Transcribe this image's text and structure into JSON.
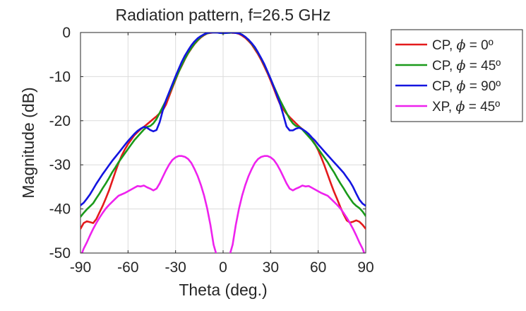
{
  "chart_data": {
    "type": "line",
    "title": "Radiation pattern, f=26.5 GHz",
    "xlabel": "Theta (deg.)",
    "ylabel": "Magnitude (dB)",
    "xlim": [
      -90,
      90
    ],
    "ylim": [
      -50,
      0
    ],
    "xticks": [
      -90,
      -60,
      -30,
      0,
      30,
      60,
      90
    ],
    "yticks": [
      0,
      -10,
      -20,
      -30,
      -40,
      -50
    ],
    "xtick_labels": [
      "-90",
      "-60",
      "-30",
      "0",
      "30",
      "60",
      "90"
    ],
    "ytick_labels": [
      "0",
      "-10",
      "-20",
      "-30",
      "-40",
      "-50"
    ],
    "grid": true,
    "legend_position": "outside-right-top",
    "series": [
      {
        "name": "CP, ϕ = 0º",
        "legend_prefix": "CP, ",
        "legend_symbol": "ϕ",
        "legend_suffix": " = 0º",
        "color": "#e41a1c",
        "x": [
          -90,
          -88,
          -86,
          -84,
          -82,
          -80,
          -78,
          -76,
          -74,
          -72,
          -70,
          -68,
          -66,
          -64,
          -62,
          -60,
          -58,
          -56,
          -54,
          -52,
          -50,
          -48,
          -46,
          -44,
          -42,
          -40,
          -38,
          -36,
          -34,
          -32,
          -30,
          -28,
          -26,
          -24,
          -22,
          -20,
          -18,
          -16,
          -14,
          -12,
          -10,
          -8,
          -6,
          -4,
          -2,
          0,
          2,
          4,
          6,
          8,
          10,
          12,
          14,
          16,
          18,
          20,
          22,
          24,
          26,
          28,
          30,
          32,
          34,
          36,
          38,
          40,
          42,
          44,
          46,
          48,
          50,
          52,
          54,
          56,
          58,
          60,
          62,
          64,
          66,
          68,
          70,
          72,
          74,
          76,
          78,
          80,
          82,
          84,
          86,
          88,
          90
        ],
        "y": [
          -44.5,
          -43.2,
          -42.8,
          -43.0,
          -43.2,
          -42.3,
          -40.8,
          -39.3,
          -37.6,
          -35.8,
          -33.7,
          -31.6,
          -29.6,
          -27.9,
          -26.5,
          -25.3,
          -24.3,
          -23.3,
          -22.6,
          -21.9,
          -21.4,
          -20.8,
          -20.2,
          -19.6,
          -19.0,
          -18.3,
          -17.6,
          -16.3,
          -14.4,
          -12.5,
          -10.7,
          -8.9,
          -7.5,
          -6.0,
          -4.7,
          -3.6,
          -2.6,
          -1.8,
          -1.1,
          -0.6,
          -0.2,
          -0.1,
          0.0,
          0.0,
          0.0,
          -0.1,
          -0.1,
          0.0,
          -0.1,
          -0.1,
          -0.3,
          -0.7,
          -1.2,
          -1.9,
          -2.7,
          -3.8,
          -4.9,
          -6.2,
          -7.7,
          -9.2,
          -10.9,
          -12.7,
          -14.6,
          -16.3,
          -17.4,
          -18.4,
          -19.2,
          -19.9,
          -20.6,
          -21.3,
          -21.9,
          -22.6,
          -23.3,
          -24.2,
          -25.3,
          -26.7,
          -28.4,
          -30.2,
          -32.2,
          -34.2,
          -36.1,
          -37.8,
          -39.6,
          -41.2,
          -42.6,
          -43.1,
          -42.9,
          -42.6,
          -42.9,
          -43.6,
          -44.5
        ]
      },
      {
        "name": "CP, ϕ = 45º",
        "legend_prefix": "CP, ",
        "legend_symbol": "ϕ",
        "legend_suffix": " = 45º",
        "color": "#1a9a1a",
        "x": [
          -90,
          -88,
          -86,
          -84,
          -82,
          -80,
          -78,
          -76,
          -74,
          -72,
          -70,
          -68,
          -66,
          -64,
          -62,
          -60,
          -58,
          -56,
          -54,
          -52,
          -50,
          -48,
          -46,
          -44,
          -42,
          -40,
          -38,
          -36,
          -34,
          -32,
          -30,
          -28,
          -26,
          -24,
          -22,
          -20,
          -18,
          -16,
          -14,
          -12,
          -10,
          -8,
          -6,
          -4,
          -2,
          0,
          2,
          4,
          6,
          8,
          10,
          12,
          14,
          16,
          18,
          20,
          22,
          24,
          26,
          28,
          30,
          32,
          34,
          36,
          38,
          40,
          42,
          44,
          46,
          48,
          50,
          52,
          54,
          56,
          58,
          60,
          62,
          64,
          66,
          68,
          70,
          72,
          74,
          76,
          78,
          80,
          82,
          84,
          86,
          88,
          90
        ],
        "y": [
          -41.8,
          -40.9,
          -40.1,
          -39.4,
          -38.7,
          -37.6,
          -36.5,
          -35.3,
          -34.2,
          -33.0,
          -31.7,
          -30.6,
          -29.4,
          -28.4,
          -27.4,
          -26.4,
          -25.4,
          -24.4,
          -23.6,
          -22.8,
          -22.0,
          -21.4,
          -21.2,
          -20.6,
          -19.6,
          -18.2,
          -16.8,
          -15.4,
          -13.8,
          -12.2,
          -10.5,
          -8.9,
          -7.3,
          -5.9,
          -4.6,
          -3.5,
          -2.5,
          -1.7,
          -1.0,
          -0.5,
          -0.2,
          0.0,
          0.0,
          0.0,
          -0.1,
          -0.2,
          -0.1,
          -0.1,
          0.0,
          -0.1,
          -0.2,
          -0.5,
          -1.0,
          -1.7,
          -2.5,
          -3.5,
          -4.6,
          -5.9,
          -7.3,
          -8.9,
          -10.5,
          -12.2,
          -13.8,
          -15.4,
          -16.8,
          -18.2,
          -19.6,
          -20.6,
          -21.2,
          -21.4,
          -22.0,
          -22.8,
          -23.6,
          -24.4,
          -25.4,
          -26.4,
          -27.4,
          -28.4,
          -29.4,
          -30.6,
          -31.7,
          -33.0,
          -34.2,
          -35.3,
          -36.5,
          -37.6,
          -38.6,
          -39.3,
          -39.8,
          -40.6,
          -41.6
        ]
      },
      {
        "name": "CP, ϕ = 90º",
        "legend_prefix": "CP, ",
        "legend_symbol": "ϕ",
        "legend_suffix": " = 90º",
        "color": "#1414e0",
        "x": [
          -90,
          -88,
          -86,
          -84,
          -82,
          -80,
          -78,
          -76,
          -74,
          -72,
          -70,
          -68,
          -66,
          -64,
          -62,
          -60,
          -58,
          -56,
          -54,
          -52,
          -50,
          -48,
          -46,
          -44,
          -42,
          -40,
          -38,
          -36,
          -34,
          -32,
          -30,
          -28,
          -26,
          -24,
          -22,
          -20,
          -18,
          -16,
          -14,
          -12,
          -10,
          -8,
          -6,
          -4,
          -2,
          0,
          2,
          4,
          6,
          8,
          10,
          12,
          14,
          16,
          18,
          20,
          22,
          24,
          26,
          28,
          30,
          32,
          34,
          36,
          38,
          40,
          42,
          44,
          46,
          48,
          50,
          52,
          54,
          56,
          58,
          60,
          62,
          64,
          66,
          68,
          70,
          72,
          74,
          76,
          78,
          80,
          82,
          84,
          86,
          88,
          90
        ],
        "y": [
          -39.2,
          -38.6,
          -37.7,
          -36.7,
          -35.5,
          -34.3,
          -33.2,
          -32.1,
          -31.1,
          -30.1,
          -29.1,
          -28.2,
          -27.3,
          -26.4,
          -25.5,
          -24.6,
          -23.8,
          -23.0,
          -22.3,
          -21.8,
          -21.4,
          -21.6,
          -22.1,
          -22.4,
          -22.1,
          -20.3,
          -17.6,
          -15.3,
          -13.5,
          -11.7,
          -9.9,
          -8.2,
          -6.6,
          -5.2,
          -4.0,
          -2.9,
          -2.0,
          -1.3,
          -0.8,
          -0.4,
          -0.1,
          0.0,
          0.0,
          0.0,
          -0.1,
          -0.1,
          -0.1,
          0.0,
          0.0,
          -0.1,
          -0.2,
          -0.5,
          -1.0,
          -1.6,
          -2.4,
          -3.3,
          -4.5,
          -5.8,
          -7.2,
          -8.8,
          -10.5,
          -12.3,
          -14.2,
          -16.2,
          -18.7,
          -21.3,
          -22.2,
          -22.2,
          -21.8,
          -21.6,
          -21.9,
          -22.4,
          -23.0,
          -23.8,
          -24.5,
          -25.4,
          -26.2,
          -27.0,
          -27.8,
          -28.6,
          -29.4,
          -30.2,
          -31.0,
          -31.8,
          -32.8,
          -33.8,
          -35.0,
          -36.5,
          -37.9,
          -38.8,
          -39.3
        ]
      },
      {
        "name": "XP, ϕ = 45º",
        "legend_prefix": "XP, ",
        "legend_symbol": "ϕ",
        "legend_suffix": " = 45º",
        "color": "#ee22ee",
        "x": [
          -89,
          -88,
          -86,
          -84,
          -82,
          -80,
          -78,
          -76,
          -74,
          -72,
          -70,
          -68,
          -66,
          -64,
          -62,
          -60,
          -58,
          -56,
          -54,
          -52,
          -50,
          -48,
          -46,
          -44,
          -42,
          -40,
          -38,
          -36,
          -34,
          -32,
          -30,
          -28,
          -26,
          -24,
          -22,
          -20,
          -18,
          -16,
          -14,
          -12,
          -10,
          -8,
          -6,
          -4.5,
          null,
          4.5,
          6,
          8,
          10,
          12,
          14,
          16,
          18,
          20,
          22,
          24,
          26,
          28,
          30,
          32,
          34,
          36,
          38,
          40,
          42,
          44,
          46,
          48,
          50,
          52,
          54,
          56,
          58,
          60,
          62,
          64,
          66,
          68,
          70,
          72,
          74,
          76,
          78,
          80,
          82,
          84,
          86,
          88,
          89
        ],
        "y": [
          -50,
          -49.0,
          -47.6,
          -46.0,
          -44.5,
          -43.2,
          -42.0,
          -40.9,
          -39.9,
          -39.1,
          -38.4,
          -37.7,
          -37.0,
          -36.7,
          -36.4,
          -36.0,
          -35.6,
          -35.2,
          -34.8,
          -34.9,
          -34.7,
          -35.1,
          -35.4,
          -35.8,
          -35.4,
          -34.2,
          -32.7,
          -31.2,
          -29.9,
          -28.9,
          -28.3,
          -28.0,
          -28.0,
          -28.2,
          -28.7,
          -29.6,
          -31.0,
          -32.6,
          -34.6,
          -37.0,
          -40.0,
          -43.6,
          -48.1,
          -50,
          null,
          -50,
          -48.1,
          -43.6,
          -40.0,
          -37.0,
          -34.6,
          -32.6,
          -31.0,
          -29.6,
          -28.7,
          -28.2,
          -28.0,
          -28.0,
          -28.3,
          -28.9,
          -29.9,
          -31.2,
          -32.7,
          -34.2,
          -35.4,
          -35.8,
          -35.4,
          -35.1,
          -34.7,
          -34.9,
          -34.8,
          -35.2,
          -35.6,
          -36.0,
          -36.4,
          -36.7,
          -37.0,
          -37.7,
          -38.4,
          -39.1,
          -39.9,
          -40.9,
          -42.0,
          -43.2,
          -44.5,
          -46.0,
          -47.6,
          -49.0,
          -50
        ]
      }
    ]
  }
}
